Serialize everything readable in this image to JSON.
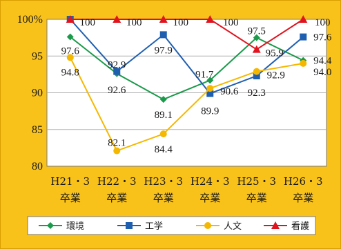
{
  "chart_data": {
    "type": "line",
    "title": "",
    "xlabel": "",
    "ylabel": "",
    "ylim": [
      80,
      100
    ],
    "yticks": [
      "80",
      "85",
      "90",
      "95",
      "100%"
    ],
    "categories": [
      [
        "H21・3",
        "卒業"
      ],
      [
        "H22・3",
        "卒業"
      ],
      [
        "H23・3",
        "卒業"
      ],
      [
        "H24・3",
        "卒業"
      ],
      [
        "H25・3",
        "卒業"
      ],
      [
        "H26・3",
        "卒業"
      ]
    ],
    "grid": true,
    "legend_position": "bottom",
    "series": [
      {
        "name": "環境",
        "color": "#1a9a4a",
        "marker": "diamond",
        "values": [
          97.6,
          92.6,
          89.1,
          91.7,
          97.5,
          94.4
        ],
        "labels": [
          "97.6",
          "92.6",
          "89.1",
          "91.7",
          "97.5",
          "94.4"
        ]
      },
      {
        "name": "工学",
        "color": "#1f5fb0",
        "marker": "square",
        "values": [
          100,
          92.9,
          97.9,
          89.9,
          92.3,
          97.6
        ],
        "labels": [
          "",
          "92.9",
          "97.9",
          "89.9",
          "92.3",
          "97.6"
        ]
      },
      {
        "name": "人文",
        "color": "#f5b800",
        "marker": "circle",
        "values": [
          94.8,
          82.1,
          84.4,
          90.6,
          92.9,
          94.0
        ],
        "labels": [
          "94.8",
          "82.1",
          "84.4",
          "90.6",
          "92.9",
          "94.0"
        ]
      },
      {
        "name": "看護",
        "color": "#e0141e",
        "marker": "triangle",
        "values": [
          100,
          100,
          100,
          100,
          95.9,
          100
        ],
        "labels": [
          "100",
          "100",
          "100",
          "100",
          "95.9",
          "100"
        ]
      }
    ]
  }
}
